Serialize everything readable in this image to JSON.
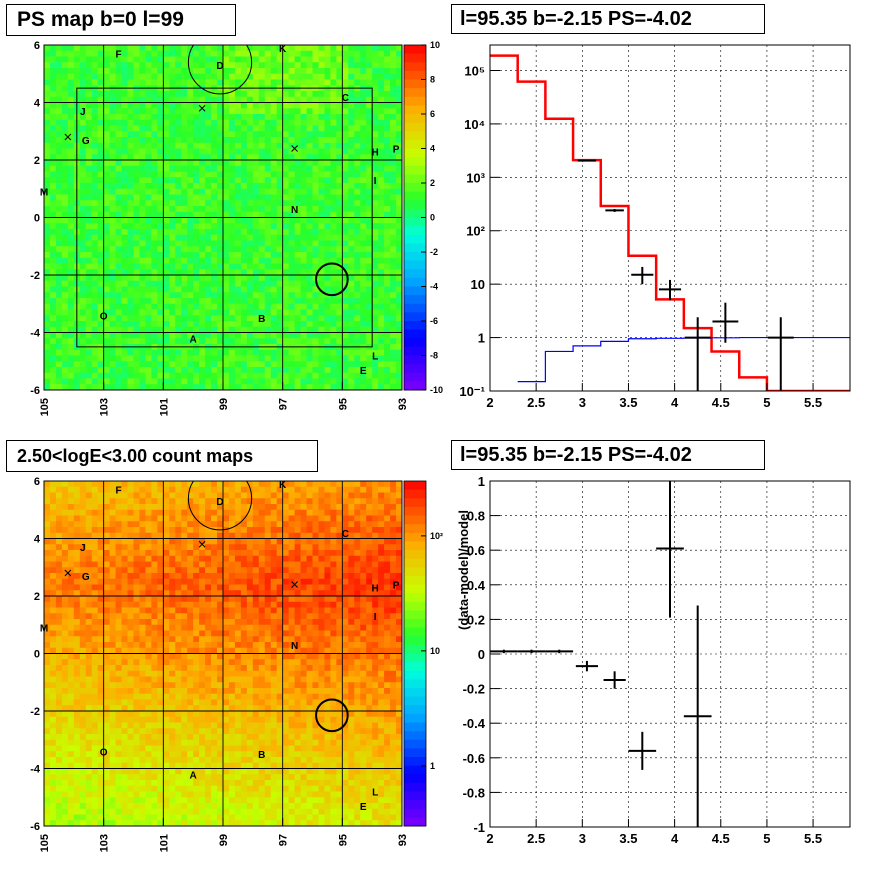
{
  "titles": {
    "ps_map": "PS map b=0 l=99",
    "spectrum": "l=95.35 b=-2.15 PS=-4.02",
    "count_map": "2.50<logE<3.00 count maps",
    "residual": "l=95.35 b=-2.15 PS=-4.02"
  },
  "chart_data": [
    {
      "type": "heatmap",
      "title": "PS map b=0 l=99",
      "x_ticks": [
        "105",
        "103",
        "101",
        "99",
        "97",
        "95",
        "93"
      ],
      "y_ticks": [
        "6",
        "4",
        "2",
        "0",
        "-2",
        "-4",
        "-6"
      ],
      "xlim": [
        105,
        93
      ],
      "ylim": [
        -6,
        6
      ],
      "colorbar": {
        "ticks": [
          "10",
          "8",
          "6",
          "4",
          "2",
          "0",
          "-2",
          "-4",
          "-6",
          "-8",
          "-10"
        ],
        "range": [
          -10,
          10
        ]
      },
      "source_labels": [
        {
          "label": "F",
          "l": 102.5,
          "b": 5.7
        },
        {
          "label": "D",
          "l": 99.1,
          "b": 5.3
        },
        {
          "label": "K",
          "l": 97.0,
          "b": 5.9
        },
        {
          "label": "C",
          "l": 94.9,
          "b": 4.2
        },
        {
          "label": "J",
          "l": 103.7,
          "b": 3.7
        },
        {
          "label": "G",
          "l": 103.6,
          "b": 2.7
        },
        {
          "label": "H",
          "l": 93.9,
          "b": 2.3
        },
        {
          "label": "P",
          "l": 93.2,
          "b": 2.4
        },
        {
          "label": "I",
          "l": 93.9,
          "b": 1.3
        },
        {
          "label": "M",
          "l": 105.0,
          "b": 0.9
        },
        {
          "label": "N",
          "l": 96.6,
          "b": 0.3
        },
        {
          "label": "O",
          "l": 103.0,
          "b": -3.4
        },
        {
          "label": "B",
          "l": 97.7,
          "b": -3.5
        },
        {
          "label": "A",
          "l": 100.0,
          "b": -4.2
        },
        {
          "label": "L",
          "l": 93.9,
          "b": -4.8
        },
        {
          "label": "E",
          "l": 94.3,
          "b": -5.3
        }
      ],
      "cross_markers": [
        {
          "l": 99.7,
          "b": 3.8
        },
        {
          "l": 104.2,
          "b": 2.8
        },
        {
          "l": 96.6,
          "b": 2.4
        }
      ],
      "circles": [
        {
          "l": 99.1,
          "b": 5.4,
          "r": 1.1
        },
        {
          "l": 95.35,
          "b": -2.15,
          "r": 0.55
        }
      ],
      "roi_box": {
        "l_min": 94.0,
        "l_max": 103.9,
        "b_min": -4.5,
        "b_max": 4.5
      }
    },
    {
      "type": "line",
      "title": "l=95.35 b=-2.15 PS=-4.02",
      "x_ticks": [
        "2",
        "2.5",
        "3",
        "3.5",
        "4",
        "4.5",
        "5",
        "5.5"
      ],
      "y_ticks": [
        "10^5",
        "10^4",
        "10^3",
        "10^2",
        "10",
        "1",
        "10^-1"
      ],
      "xlim": [
        2,
        5.9
      ],
      "ylim": [
        0.1,
        300000
      ],
      "yscale": "log",
      "grid": true,
      "series": [
        {
          "color": "#ff0000",
          "type": "step",
          "x_edges": [
            2.0,
            2.3,
            2.6,
            2.9,
            3.2,
            3.5,
            3.8,
            4.1,
            4.4,
            4.7,
            5.0,
            5.3,
            5.9
          ],
          "values": [
            190000,
            62000,
            12500,
            2100,
            290,
            34,
            5.2,
            1.5,
            0.55,
            0.18,
            0.1,
            0.1
          ]
        },
        {
          "color": "#0000ff",
          "type": "step",
          "x_edges": [
            2.3,
            2.6,
            2.9,
            3.2,
            3.5,
            3.8,
            4.1,
            4.4,
            4.7,
            5.0,
            5.3,
            5.9
          ],
          "values": [
            0.15,
            0.55,
            0.7,
            0.85,
            0.95,
            0.97,
            0.98,
            0.99,
            1.0,
            1.0,
            1.0
          ]
        },
        {
          "color": "#000000",
          "type": "errorbar",
          "points": [
            {
              "x": 3.05,
              "y": 2050,
              "xerr": 0.1,
              "ylo": 2000,
              "yhi": 2100
            },
            {
              "x": 3.35,
              "y": 240,
              "xerr": 0.1,
              "ylo": 225,
              "yhi": 255
            },
            {
              "x": 3.65,
              "y": 15,
              "xerr": 0.12,
              "ylo": 10,
              "yhi": 21
            },
            {
              "x": 3.95,
              "y": 8,
              "xerr": 0.12,
              "ylo": 5,
              "yhi": 12
            },
            {
              "x": 4.25,
              "y": 1,
              "xerr": 0.14,
              "ylo": 0.1,
              "yhi": 2.4
            },
            {
              "x": 4.55,
              "y": 2,
              "xerr": 0.14,
              "ylo": 0.8,
              "yhi": 4.5
            },
            {
              "x": 5.15,
              "y": 1,
              "xerr": 0.14,
              "ylo": 0.1,
              "yhi": 2.4
            }
          ]
        }
      ]
    },
    {
      "type": "heatmap",
      "title": "2.50<logE<3.00 count maps",
      "x_ticks": [
        "105",
        "103",
        "101",
        "99",
        "97",
        "95",
        "93"
      ],
      "y_ticks": [
        "6",
        "4",
        "2",
        "0",
        "-2",
        "-4",
        "-6"
      ],
      "xlim": [
        105,
        93
      ],
      "ylim": [
        -6,
        6
      ],
      "colorbar": {
        "ticks": [
          "10²",
          "10",
          "1"
        ],
        "scale": "log",
        "range": [
          0.3,
          300
        ]
      }
    },
    {
      "type": "scatter",
      "title": "l=95.35 b=-2.15 PS=-4.02",
      "ylabel": "(data-model)/model",
      "x_ticks": [
        "2",
        "2.5",
        "3",
        "3.5",
        "4",
        "4.5",
        "5",
        "5.5"
      ],
      "y_ticks": [
        "1",
        "0.8",
        "0.6",
        "0.4",
        "0.2",
        "0",
        "-0.2",
        "-0.4",
        "-0.6",
        "-0.8",
        "-1"
      ],
      "xlim": [
        2,
        5.9
      ],
      "ylim": [
        -1,
        1
      ],
      "grid": true,
      "points": [
        {
          "x": 2.15,
          "y": 0.015,
          "xerr": 0.15,
          "yerr": 0.01
        },
        {
          "x": 2.45,
          "y": 0.015,
          "xerr": 0.15,
          "yerr": 0.01
        },
        {
          "x": 2.75,
          "y": 0.015,
          "xerr": 0.15,
          "yerr": 0.01
        },
        {
          "x": 3.05,
          "y": -0.07,
          "xerr": 0.12,
          "yerr": 0.03
        },
        {
          "x": 3.35,
          "y": -0.15,
          "xerr": 0.12,
          "yerr": 0.05
        },
        {
          "x": 3.65,
          "y": -0.56,
          "xerr": 0.15,
          "yerr": 0.11
        },
        {
          "x": 3.95,
          "y": 0.61,
          "xerr": 0.15,
          "yerr": 0.4
        },
        {
          "x": 4.25,
          "y": -0.36,
          "xerr": 0.15,
          "yerr": 0.64
        }
      ]
    }
  ]
}
